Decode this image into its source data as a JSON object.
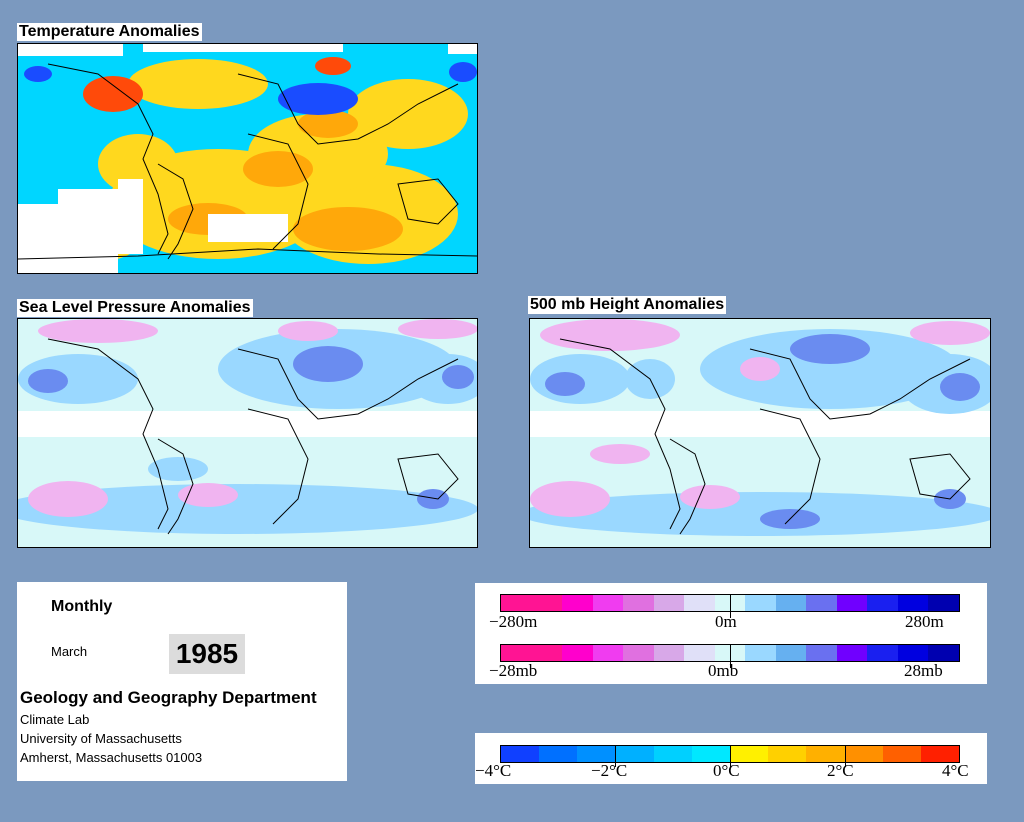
{
  "maps": {
    "temperature": {
      "title": "Temperature Anomalies"
    },
    "slp": {
      "title": "Sea Level Pressure Anomalies"
    },
    "height500": {
      "title": "500 mb Height Anomalies"
    }
  },
  "info": {
    "period": "Monthly",
    "month": "March",
    "year": "1985",
    "department": "Geology and Geography Department",
    "lines": [
      "Climate Lab",
      "University of Massachusetts",
      "Amherst, Massachusetts 01003"
    ]
  },
  "legends": {
    "height": {
      "min": "−280m",
      "mid": "0m",
      "max": "280m"
    },
    "pressure": {
      "min": "−28mb",
      "mid": "0mb",
      "max": "28mb"
    },
    "temperature": {
      "t1": "−4°C",
      "t2": "−2°C",
      "t3": "0°C",
      "t4": "2°C",
      "t5": "4°C"
    }
  },
  "colors": {
    "background": "#7b99bf",
    "anomaly_scale": [
      "#ff1493",
      "#ff1493",
      "#ff00cc",
      "#f03cf0",
      "#e070e0",
      "#d8a8e8",
      "#e0e0f8",
      "#d8f8f8",
      "#9ad8ff",
      "#66b0f0",
      "#6a70f0",
      "#7000ff",
      "#1a20f0",
      "#0000e0",
      "#0000b0"
    ],
    "temperature_scale": [
      "#1040ff",
      "#0070ff",
      "#0090ff",
      "#00b0ff",
      "#00d0ff",
      "#00e8ff",
      "#fff000",
      "#ffd000",
      "#ffb000",
      "#ff9000",
      "#ff6000",
      "#ff2000"
    ]
  }
}
